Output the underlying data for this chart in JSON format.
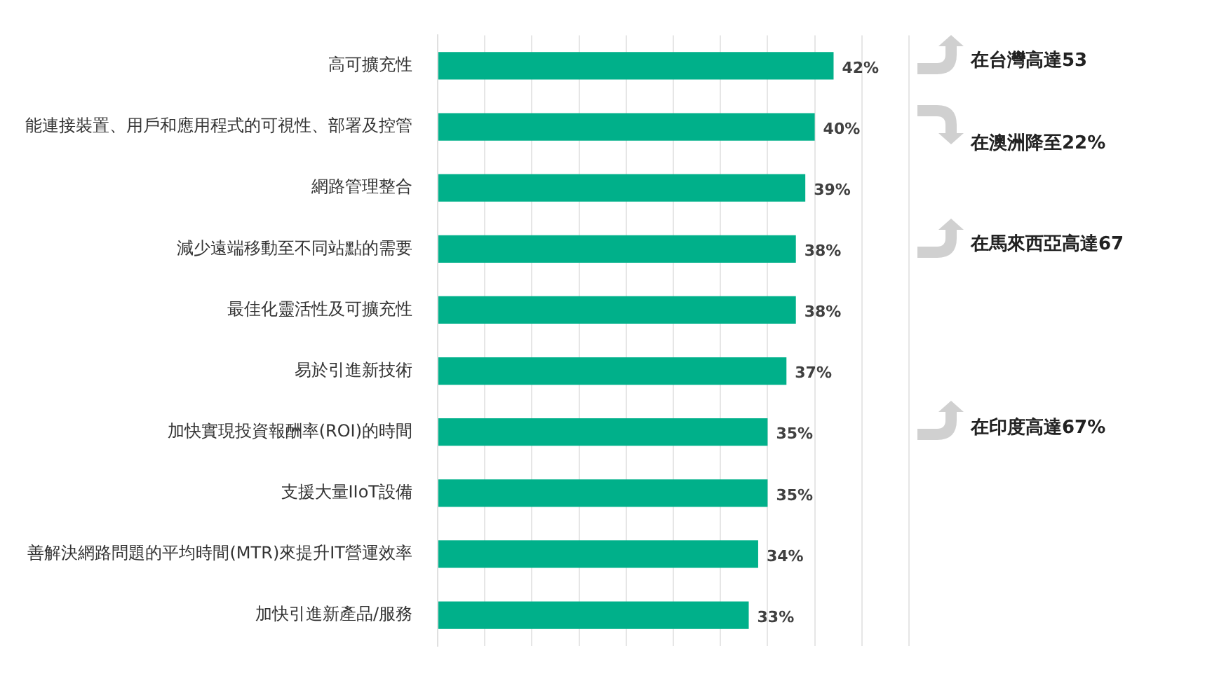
{
  "chart_data": {
    "type": "bar",
    "orientation": "horizontal",
    "categories": [
      "高可擴充性",
      "能連接裝置、用戶和應用程式的可視性、部署及控管",
      "網路管理整合",
      "減少遠端移動至不同站點的需要",
      "最佳化靈活性及可擴充性",
      "易於引進新技術",
      "加快實現投資報酬率(ROI)的時間",
      "支援大量IIoT設備",
      "善解決網路問題的平均時間(MTR)來提升IT營運效率",
      "加快引進新產品/服務"
    ],
    "values": [
      42,
      40,
      39,
      38,
      38,
      37,
      35,
      35,
      34,
      33
    ],
    "value_labels": [
      "42%",
      "40%",
      "39%",
      "38%",
      "38%",
      "37%",
      "35%",
      "35%",
      "34%",
      "33%"
    ],
    "color": "#00b08a",
    "xlim": [
      0,
      50
    ],
    "xticks": [
      {
        "value": 0,
        "label": null
      },
      {
        "value": 5,
        "label": null
      },
      {
        "value": 10,
        "label": null
      },
      {
        "value": 15,
        "label": null
      },
      {
        "value": 20,
        "label": null
      },
      {
        "value": 25,
        "label": null
      },
      {
        "value": 30,
        "label": null
      },
      {
        "value": 35,
        "label": null
      },
      {
        "value": 40,
        "label": null
      },
      {
        "value": 45,
        "label": null
      },
      {
        "value": 50,
        "label": null
      }
    ],
    "grid": "x",
    "tick_labels": "y",
    "annotations": [
      "在台灣高達53",
      "在澳洲降至22%",
      "在馬來西亞高達67",
      "在印度高達67%"
    ]
  }
}
